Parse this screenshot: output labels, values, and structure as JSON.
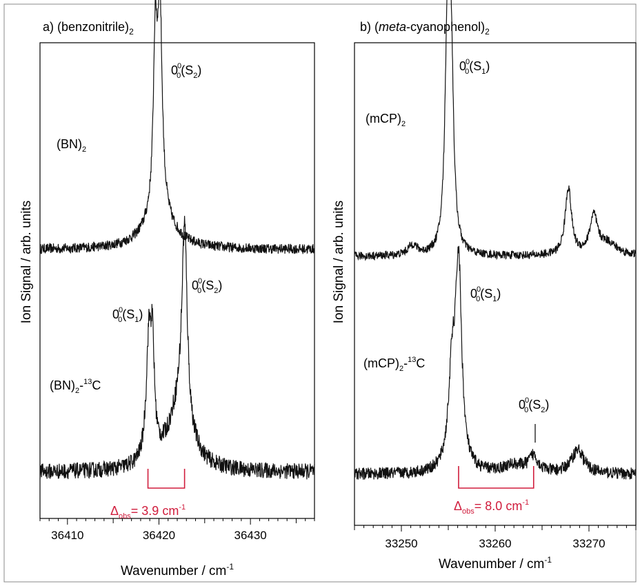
{
  "chart_data": [
    {
      "type": "line",
      "panel_title": {
        "prefix": "a) (benzonitrile)",
        "sub": "2"
      },
      "xlabel": "Wavenumber / cm",
      "xlabel_sup": "-1",
      "ylabel": "Ion Signal / arb. units",
      "xlim": [
        36407,
        36437
      ],
      "xticks": [
        36410,
        36420,
        36430
      ],
      "xtick_labels": [
        "36410",
        "36420",
        "36430"
      ],
      "series": [
        {
          "label": {
            "main": "(BN)",
            "sub": "2",
            "suffix": ""
          },
          "peaks": [
            {
              "x": 36419.6,
              "h": 0.8,
              "w": 0.25
            },
            {
              "x": 36420.1,
              "h": 1.0,
              "w": 0.3
            },
            {
              "x": 36420.0,
              "h": 0.18,
              "w": 1.8
            }
          ],
          "noise": 0.025,
          "annotations": [
            {
              "text": "0",
              "sup": "0",
              "sub": "0",
              "state": "(S",
              "state_sub": "2",
              "close": ")"
            }
          ]
        },
        {
          "label": {
            "main": "(BN)",
            "sub": "2",
            "suffix": "-",
            "suffix_sup": "13",
            "suffix_tail": "C"
          },
          "peaks": [
            {
              "x": 36418.9,
              "h": 0.58,
              "w": 0.35
            },
            {
              "x": 36419.3,
              "h": 0.45,
              "w": 0.25
            },
            {
              "x": 36422.8,
              "h": 0.98,
              "w": 0.35
            },
            {
              "x": 36422.2,
              "h": 0.3,
              "w": 1.5
            }
          ],
          "noise": 0.04,
          "annotations": [
            {
              "text": "0",
              "sup": "0",
              "sub": "0",
              "state": "(S",
              "state_sub": "1",
              "close": ")"
            },
            {
              "text": "0",
              "sup": "0",
              "sub": "0",
              "state": "(S",
              "state_sub": "2",
              "close": ")"
            }
          ],
          "splitting": {
            "from": 36418.8,
            "to": 36422.8,
            "label": "Δ",
            "label_sub": "obs",
            "value": "= 3.9 cm",
            "unit_sup": "-1"
          }
        }
      ]
    },
    {
      "type": "line",
      "panel_title": {
        "prefix": "b) (",
        "italic": "meta",
        "rest": "-cyanophenol)",
        "sub": "2"
      },
      "xlabel": "Wavenumber / cm",
      "xlabel_sup": "-1",
      "ylabel": "Ion Signal / arb. units",
      "xlim": [
        33245,
        33275
      ],
      "xticks": [
        33250,
        33260,
        33270
      ],
      "xtick_labels": [
        "33250",
        "33260",
        "33270"
      ],
      "series": [
        {
          "label": {
            "main": "(mCP)",
            "sub": "2",
            "suffix": ""
          },
          "peaks": [
            {
              "x": 33254.9,
              "h": 1.0,
              "w": 0.3
            },
            {
              "x": 33255.3,
              "h": 0.92,
              "w": 0.3
            },
            {
              "x": 33251.2,
              "h": 0.05,
              "w": 0.6
            },
            {
              "x": 33267.8,
              "h": 0.33,
              "w": 0.4
            },
            {
              "x": 33270.5,
              "h": 0.18,
              "w": 0.5
            },
            {
              "x": 33272.0,
              "h": 0.06,
              "w": 1.2
            }
          ],
          "noise": 0.02,
          "annotations": [
            {
              "text": "0",
              "sup": "0",
              "sub": "0",
              "state": "(S",
              "state_sub": "1",
              "close": ")"
            }
          ]
        },
        {
          "label": {
            "main": "(mCP)",
            "sub": "2",
            "suffix": "-",
            "suffix_sup": "13",
            "suffix_tail": "C"
          },
          "peaks": [
            {
              "x": 33256.1,
              "h": 1.0,
              "w": 0.4
            },
            {
              "x": 33255.4,
              "h": 0.45,
              "w": 0.45
            },
            {
              "x": 33264.1,
              "h": 0.08,
              "w": 0.6
            },
            {
              "x": 33268.8,
              "h": 0.12,
              "w": 0.8
            },
            {
              "x": 33262.0,
              "h": 0.04,
              "w": 1.5
            }
          ],
          "noise": 0.03,
          "annotations": [
            {
              "text": "0",
              "sup": "0",
              "sub": "0",
              "state": "(S",
              "state_sub": "1",
              "close": ")"
            },
            {
              "text": "0",
              "sup": "0",
              "sub": "0",
              "state": "(S",
              "state_sub": "2",
              "close": ")"
            }
          ],
          "splitting": {
            "from": 33256.1,
            "to": 33264.1,
            "label": "Δ",
            "label_sub": "obs",
            "value": "= 8.0 cm",
            "unit_sup": "-1"
          }
        }
      ]
    }
  ],
  "colors": {
    "trace": "#111111",
    "splitting": "#d01c3c",
    "frame": "#888888"
  }
}
